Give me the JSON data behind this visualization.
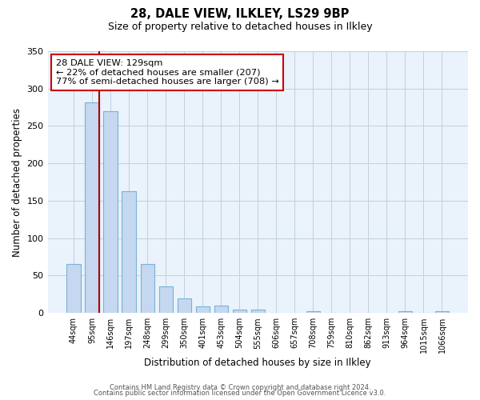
{
  "title1": "28, DALE VIEW, ILKLEY, LS29 9BP",
  "title2": "Size of property relative to detached houses in Ilkley",
  "xlabel": "Distribution of detached houses by size in Ilkley",
  "ylabel": "Number of detached properties",
  "categories": [
    "44sqm",
    "95sqm",
    "146sqm",
    "197sqm",
    "248sqm",
    "299sqm",
    "350sqm",
    "401sqm",
    "453sqm",
    "504sqm",
    "555sqm",
    "606sqm",
    "657sqm",
    "708sqm",
    "759sqm",
    "810sqm",
    "862sqm",
    "913sqm",
    "964sqm",
    "1015sqm",
    "1066sqm"
  ],
  "values": [
    65,
    282,
    270,
    163,
    66,
    35,
    20,
    9,
    10,
    5,
    4,
    0,
    0,
    2,
    0,
    0,
    0,
    0,
    2,
    0,
    2
  ],
  "bar_color": "#c5d8f0",
  "bar_edge_color": "#7ab3d8",
  "vline_color": "#aa0000",
  "ylim": [
    0,
    350
  ],
  "yticks": [
    0,
    50,
    100,
    150,
    200,
    250,
    300,
    350
  ],
  "annotation_text": "28 DALE VIEW: 129sqm\n← 22% of detached houses are smaller (207)\n77% of semi-detached houses are larger (708) →",
  "annotation_box_color": "#ffffff",
  "annotation_box_edge": "#cc0000",
  "footer1": "Contains HM Land Registry data © Crown copyright and database right 2024.",
  "footer2": "Contains public sector information licensed under the Open Government Licence v3.0.",
  "background_color": "#ffffff",
  "plot_bg_color": "#eaf2fb",
  "grid_color": "#c0d0e0"
}
